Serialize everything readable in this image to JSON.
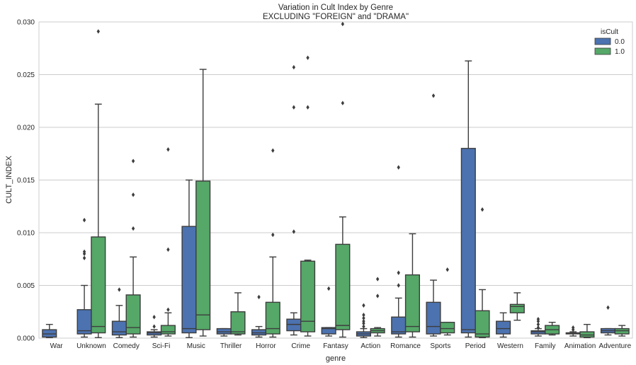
{
  "chart_data": {
    "type": "box",
    "title": "Variation in Cult Index by Genre",
    "subtitle": "EXCLUDING \"FOREIGN\" and \"DRAMA\"",
    "xlabel": "genre",
    "ylabel": "CULT_INDEX",
    "ylim": [
      0,
      0.03
    ],
    "yticks": [
      "0.000",
      "0.005",
      "0.010",
      "0.015",
      "0.020",
      "0.025",
      "0.030"
    ],
    "grid": true,
    "legend": {
      "title": "isCult",
      "placement": "top-right"
    },
    "categories": [
      "War",
      "Unknown",
      "Comedy",
      "Sci-Fi",
      "Music",
      "Thriller",
      "Horror",
      "Crime",
      "Fantasy",
      "Action",
      "Romance",
      "Sports",
      "Period",
      "Western",
      "Family",
      "Animation",
      "Adventure"
    ],
    "series": [
      {
        "name": "0.0",
        "color": "#4c72b0",
        "boxes": [
          {
            "min": 5e-05,
            "q1": 0.0001,
            "median": 0.0004,
            "q3": 0.0008,
            "max": 0.0013,
            "outliers": []
          },
          {
            "min": 0.0001,
            "q1": 0.0004,
            "median": 0.0007,
            "q3": 0.0027,
            "max": 0.005,
            "outliers": [
              0.0076,
              0.008,
              0.0082,
              0.0112
            ]
          },
          {
            "min": 5e-05,
            "q1": 0.0003,
            "median": 0.0006,
            "q3": 0.0016,
            "max": 0.0031,
            "outliers": [
              0.0046
            ]
          },
          {
            "min": 0.0001,
            "q1": 0.0003,
            "median": 0.0005,
            "q3": 0.0006,
            "max": 0.0008,
            "outliers": [
              0.0011,
              0.002
            ]
          },
          {
            "min": 5e-05,
            "q1": 0.0005,
            "median": 0.0009,
            "q3": 0.0106,
            "max": 0.015,
            "outliers": []
          },
          {
            "min": 0.0002,
            "q1": 0.0004,
            "median": 0.0006,
            "q3": 0.0009,
            "max": 0.0009,
            "outliers": []
          },
          {
            "min": 0.0001,
            "q1": 0.0003,
            "median": 0.0005,
            "q3": 0.0008,
            "max": 0.0011,
            "outliers": [
              0.0039
            ]
          },
          {
            "min": 0.0003,
            "q1": 0.0007,
            "median": 0.0013,
            "q3": 0.0018,
            "max": 0.0024,
            "outliers": [
              0.0101,
              0.0219,
              0.0257
            ]
          },
          {
            "min": 0.0002,
            "q1": 0.0004,
            "median": 0.0009,
            "q3": 0.001,
            "max": 0.001,
            "outliers": [
              0.0047
            ]
          },
          {
            "min": 5e-05,
            "q1": 0.0002,
            "median": 0.0004,
            "q3": 0.0006,
            "max": 0.0009,
            "outliers": [
              0.0011,
              0.0014,
              0.0016,
              0.0019,
              0.0022,
              0.0031
            ]
          },
          {
            "min": 0.0001,
            "q1": 0.0004,
            "median": 0.0006,
            "q3": 0.002,
            "max": 0.0038,
            "outliers": [
              0.005,
              0.0062,
              0.0162
            ]
          },
          {
            "min": 0.0002,
            "q1": 0.0004,
            "median": 0.0011,
            "q3": 0.0034,
            "max": 0.0055,
            "outliers": [
              0.023
            ]
          },
          {
            "min": 0.0001,
            "q1": 0.0005,
            "median": 0.0008,
            "q3": 0.018,
            "max": 0.0263,
            "outliers": []
          },
          {
            "min": 0.0001,
            "q1": 0.0004,
            "median": 0.0009,
            "q3": 0.0016,
            "max": 0.0024,
            "outliers": []
          },
          {
            "min": 0.0002,
            "q1": 0.0004,
            "median": 0.0006,
            "q3": 0.0007,
            "max": 0.0009,
            "outliers": [
              0.001,
              0.0013,
              0.0016,
              0.0018
            ]
          },
          {
            "min": 0.0002,
            "q1": 0.0004,
            "median": 0.0005,
            "q3": 0.0005,
            "max": 0.0006,
            "outliers": [
              0.0008,
              0.001
            ]
          },
          {
            "min": 0.0003,
            "q1": 0.0005,
            "median": 0.0007,
            "q3": 0.0009,
            "max": 0.0009,
            "outliers": [
              0.0029
            ]
          }
        ]
      },
      {
        "name": "1.0",
        "color": "#55a868",
        "boxes": [
          null,
          {
            "min": 5e-05,
            "q1": 0.0005,
            "median": 0.0011,
            "q3": 0.0096,
            "max": 0.0222,
            "outliers": [
              0.0291
            ]
          },
          {
            "min": 0.0001,
            "q1": 0.0004,
            "median": 0.001,
            "q3": 0.0041,
            "max": 0.0077,
            "outliers": [
              0.0104,
              0.0136,
              0.0168
            ]
          },
          {
            "min": 0.0002,
            "q1": 0.0004,
            "median": 0.0006,
            "q3": 0.0012,
            "max": 0.0024,
            "outliers": [
              0.0027,
              0.0084,
              0.0179
            ]
          },
          {
            "min": 0.0002,
            "q1": 0.0008,
            "median": 0.0022,
            "q3": 0.0149,
            "max": 0.0255,
            "outliers": []
          },
          {
            "min": 0.0003,
            "q1": 0.0004,
            "median": 0.0006,
            "q3": 0.0025,
            "max": 0.0043,
            "outliers": []
          },
          {
            "min": 0.0001,
            "q1": 0.0004,
            "median": 0.0009,
            "q3": 0.0034,
            "max": 0.0077,
            "outliers": [
              0.0098,
              0.0178
            ]
          },
          {
            "min": 0.0002,
            "q1": 0.0006,
            "median": 0.0016,
            "q3": 0.0073,
            "max": 0.0074,
            "outliers": [
              0.0219,
              0.0266
            ]
          },
          {
            "min": 0.0001,
            "q1": 0.0008,
            "median": 0.0012,
            "q3": 0.0089,
            "max": 0.0115,
            "outliers": [
              0.0223,
              0.0298
            ]
          },
          {
            "min": 0.0002,
            "q1": 0.0005,
            "median": 0.0007,
            "q3": 0.0009,
            "max": 0.001,
            "outliers": [
              0.004,
              0.0056
            ]
          },
          {
            "min": 0.0001,
            "q1": 0.0006,
            "median": 0.0011,
            "q3": 0.006,
            "max": 0.0099,
            "outliers": []
          },
          {
            "min": 0.0003,
            "q1": 0.0005,
            "median": 0.0009,
            "q3": 0.0015,
            "max": 0.0015,
            "outliers": [
              0.0065
            ]
          },
          {
            "min": 5e-05,
            "q1": 0.0001,
            "median": 0.0004,
            "q3": 0.0026,
            "max": 0.0046,
            "outliers": [
              0.0122
            ]
          },
          {
            "min": 0.0017,
            "q1": 0.0024,
            "median": 0.003,
            "q3": 0.0032,
            "max": 0.0043,
            "outliers": []
          },
          {
            "min": 0.0003,
            "q1": 0.0004,
            "median": 0.0008,
            "q3": 0.0012,
            "max": 0.0015,
            "outliers": []
          },
          {
            "min": 5e-05,
            "q1": 0.0001,
            "median": 0.0003,
            "q3": 0.0006,
            "max": 0.0013,
            "outliers": []
          },
          {
            "min": 0.0002,
            "q1": 0.0004,
            "median": 0.0007,
            "q3": 0.0009,
            "max": 0.0012,
            "outliers": []
          }
        ]
      }
    ]
  }
}
